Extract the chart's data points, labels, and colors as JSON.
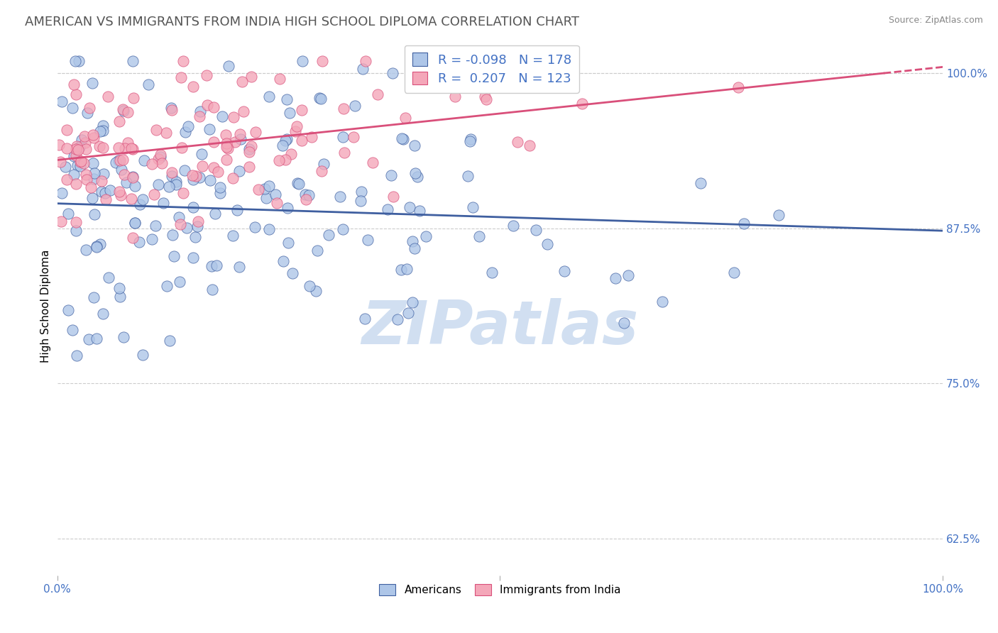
{
  "title": "AMERICAN VS IMMIGRANTS FROM INDIA HIGH SCHOOL DIPLOMA CORRELATION CHART",
  "source": "Source: ZipAtlas.com",
  "ylabel": "High School Diploma",
  "legend_label_1": "Americans",
  "legend_label_2": "Immigrants from India",
  "r1": -0.098,
  "n1": 178,
  "r2": 0.207,
  "n2": 123,
  "color_american": "#aec6e8",
  "color_india": "#f4a7b9",
  "color_trend_american": "#3f5fa0",
  "color_trend_india": "#d94f7a",
  "watermark_text": "ZIPatlas",
  "watermark_color": "#ccdcf0",
  "xlim": [
    0.0,
    1.0
  ],
  "ylim": [
    0.595,
    1.03
  ],
  "yticks": [
    0.625,
    0.75,
    0.875,
    1.0
  ],
  "ytick_labels": [
    "62.5%",
    "75.0%",
    "87.5%",
    "100.0%"
  ],
  "title_fontsize": 13,
  "axis_label_fontsize": 11,
  "tick_label_fontsize": 11,
  "legend_fontsize": 13,
  "background_color": "#ffffff",
  "grid_color": "#cccccc",
  "tick_color": "#4472c4",
  "legend_r_color": "#4472c4",
  "seed": 99,
  "trend_blue_y0": 0.895,
  "trend_blue_y1": 0.873,
  "trend_pink_y0": 0.93,
  "trend_pink_y1": 1.005
}
